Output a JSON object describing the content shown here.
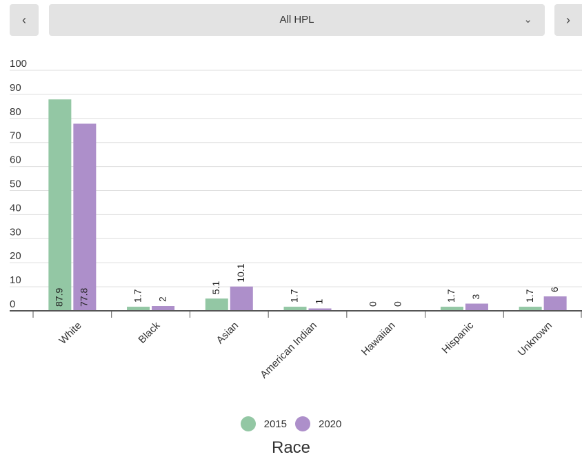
{
  "controls": {
    "prev_icon": "‹",
    "next_icon": "›",
    "dropdown_value": "All HPL",
    "dropdown_icon": "⌄"
  },
  "chart_data": {
    "type": "bar",
    "categories": [
      "White",
      "Black",
      "Asian",
      "American Indian",
      "Hawaiian",
      "Hispanic",
      "Unknown"
    ],
    "series": [
      {
        "name": "2015",
        "color": "#93c7a4",
        "values": [
          87.9,
          1.7,
          5.1,
          1.7,
          0,
          1.7,
          1.7
        ]
      },
      {
        "name": "2020",
        "color": "#ad8fca",
        "values": [
          77.8,
          2,
          10.1,
          1,
          0,
          3,
          6
        ]
      }
    ],
    "y_ticks": [
      0,
      10,
      20,
      30,
      40,
      50,
      60,
      70,
      80,
      90,
      100
    ],
    "ylim": [
      0,
      100
    ],
    "xlabel": "Race",
    "ylabel": "",
    "grid": true,
    "legend": "bottom-center"
  }
}
